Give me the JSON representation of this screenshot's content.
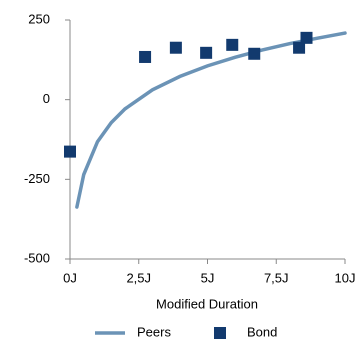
{
  "chart_data": {
    "type": "scatter",
    "x_label": "Modified Duration",
    "xlim": [
      0,
      10
    ],
    "xticks": [
      {
        "value": 0,
        "label": "0J"
      },
      {
        "value": 2.5,
        "label": "2,5J"
      },
      {
        "value": 5,
        "label": "5J"
      },
      {
        "value": 7.5,
        "label": "7,5J"
      },
      {
        "value": 10,
        "label": "10J"
      }
    ],
    "ylim": [
      -500,
      250
    ],
    "yticks": [
      -500,
      -250,
      0,
      250
    ],
    "grid": false,
    "legend": "bottom",
    "series": [
      {
        "name": "Peers",
        "style": "line",
        "color": "#6b93b6",
        "x": [
          0.25,
          0.5,
          1,
          1.5,
          2,
          3,
          4,
          5,
          6,
          7,
          8,
          9,
          10
        ],
        "values": [
          -337,
          -235,
          -132,
          -72,
          -29,
          31,
          73,
          106,
          133,
          156,
          176,
          193,
          209
        ]
      },
      {
        "name": "Bond",
        "style": "marker",
        "color": "#123a6e",
        "x": [
          0,
          2.73,
          3.85,
          4.95,
          5.9,
          6.7,
          8.33,
          8.6
        ],
        "values": [
          -163,
          134,
          163,
          147,
          172,
          144,
          163,
          194
        ]
      }
    ]
  }
}
